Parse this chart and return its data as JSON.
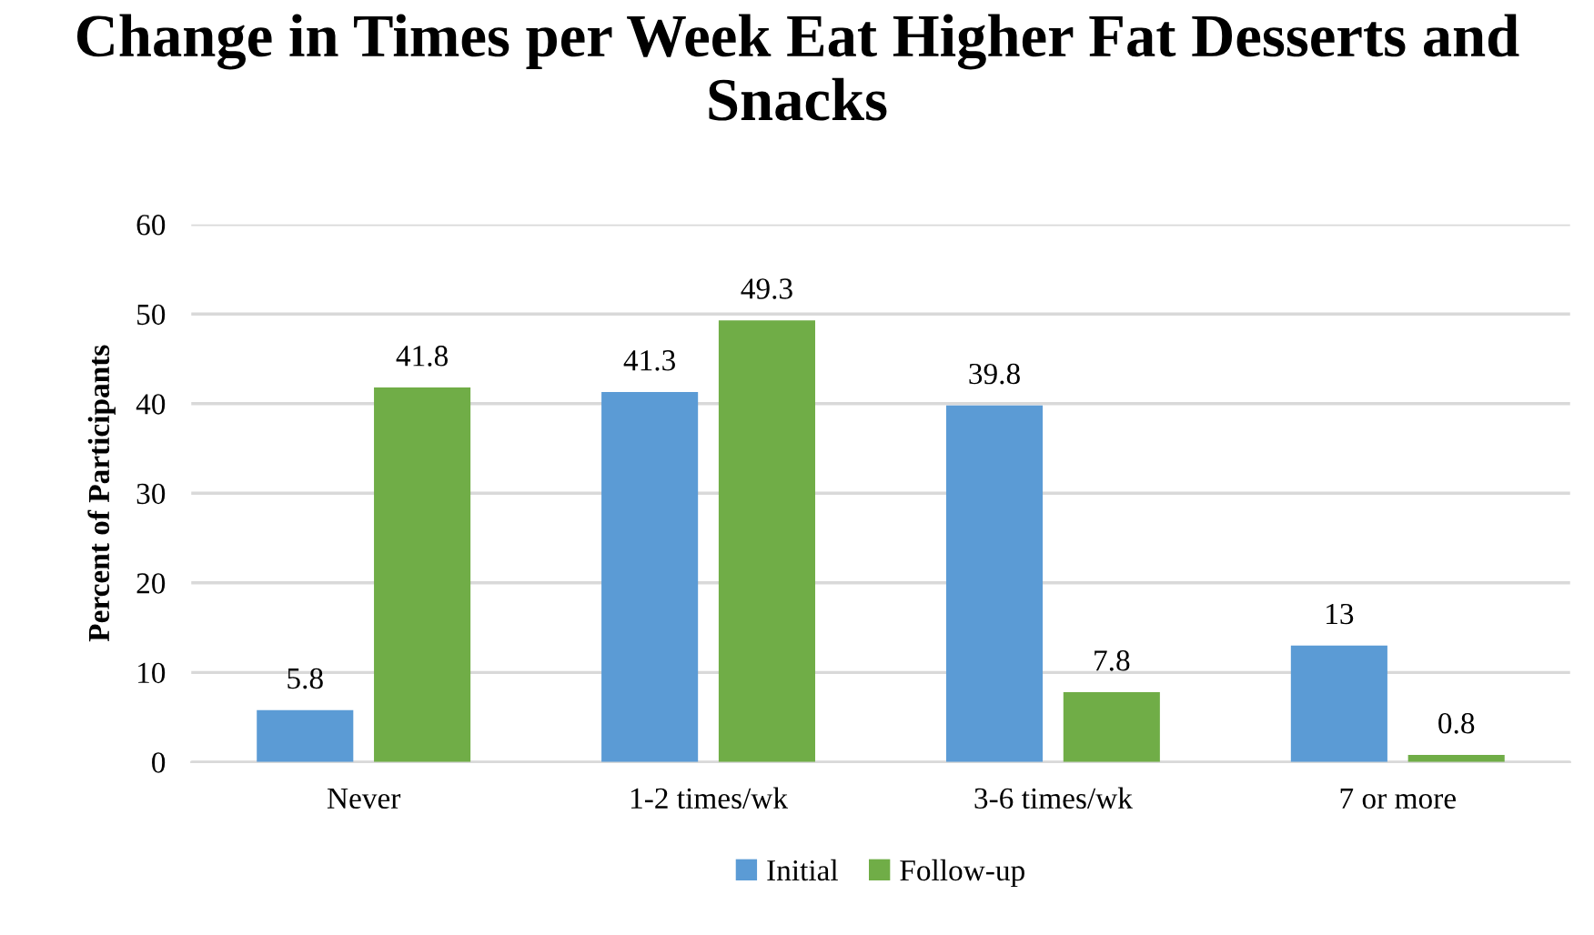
{
  "chart_data": {
    "type": "bar",
    "title": "Change in Times per Week Eat Higher Fat Desserts and Snacks",
    "ylabel": "Percent of Participants",
    "categories": [
      "Never",
      "1-2 times/wk",
      "3-6 times/wk",
      "7 or more"
    ],
    "series": [
      {
        "name": "Initial",
        "color": "#5b9bd5",
        "values": [
          5.8,
          41.3,
          39.8,
          13
        ]
      },
      {
        "name": "Follow-up",
        "color": "#70ad47",
        "values": [
          41.8,
          49.3,
          7.8,
          0.8
        ]
      }
    ],
    "ylim": [
      0,
      60
    ],
    "yticks": [
      0,
      10,
      20,
      30,
      40,
      50,
      60
    ],
    "grid": "y",
    "legend": "bottom",
    "data_labels": true
  }
}
